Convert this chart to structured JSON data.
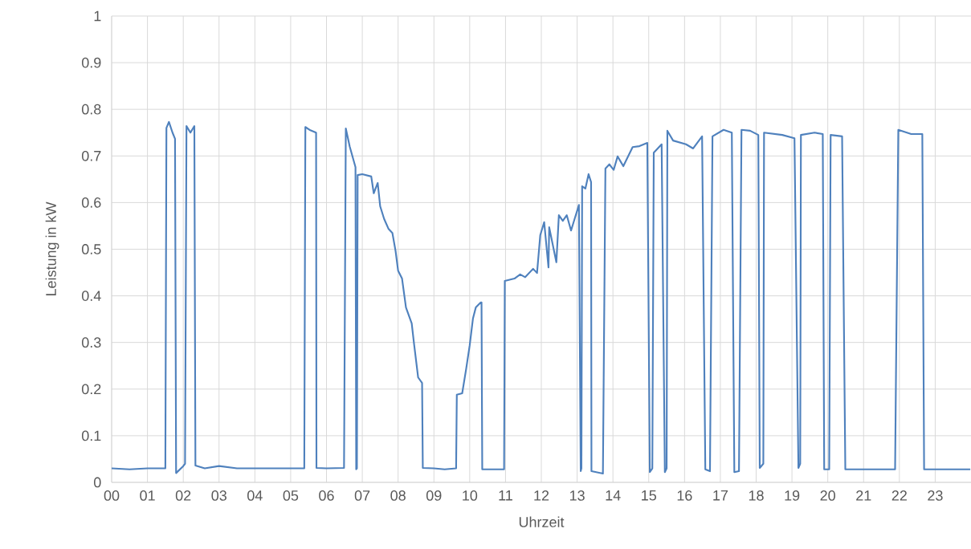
{
  "chart_data": {
    "type": "line",
    "xlabel": "Uhrzeit",
    "ylabel": "Leistung in kW",
    "color": "#4f81bd",
    "grid": true,
    "xlim": [
      0,
      24
    ],
    "ylim": [
      0,
      1
    ],
    "xticks": [
      {
        "value": 0,
        "label": "00"
      },
      {
        "value": 1,
        "label": "01"
      },
      {
        "value": 2,
        "label": "02"
      },
      {
        "value": 3,
        "label": "03"
      },
      {
        "value": 4,
        "label": "04"
      },
      {
        "value": 5,
        "label": "05"
      },
      {
        "value": 6,
        "label": "06"
      },
      {
        "value": 7,
        "label": "07"
      },
      {
        "value": 8,
        "label": "08"
      },
      {
        "value": 9,
        "label": "09"
      },
      {
        "value": 10,
        "label": "10"
      },
      {
        "value": 11,
        "label": "11"
      },
      {
        "value": 12,
        "label": "12"
      },
      {
        "value": 13,
        "label": "13"
      },
      {
        "value": 14,
        "label": "14"
      },
      {
        "value": 15,
        "label": "15"
      },
      {
        "value": 16,
        "label": "16"
      },
      {
        "value": 17,
        "label": "17"
      },
      {
        "value": 18,
        "label": "18"
      },
      {
        "value": 19,
        "label": "19"
      },
      {
        "value": 20,
        "label": "20"
      },
      {
        "value": 21,
        "label": "21"
      },
      {
        "value": 22,
        "label": "22"
      },
      {
        "value": 23,
        "label": "23"
      }
    ],
    "yticks": [
      0,
      0.1,
      0.2,
      0.3,
      0.4,
      0.5,
      0.6,
      0.7,
      0.8,
      0.9,
      1
    ],
    "x": [
      0,
      0.5,
      1,
      1.5,
      1.53,
      1.6,
      1.7,
      1.77,
      1.8,
      2.0,
      2.05,
      2.09,
      2.2,
      2.31,
      2.34,
      2.6,
      3.0,
      3.5,
      4.0,
      4.5,
      5.0,
      5.38,
      5.41,
      5.55,
      5.71,
      5.72,
      6.0,
      6.49,
      6.54,
      6.65,
      6.81,
      6.83,
      6.85,
      6.87,
      7.0,
      7.25,
      7.32,
      7.43,
      7.5,
      7.61,
      7.73,
      7.84,
      7.93,
      8.0,
      8.11,
      8.22,
      8.38,
      8.45,
      8.56,
      8.67,
      8.69,
      9.0,
      9.3,
      9.62,
      9.64,
      9.79,
      9.9,
      10.0,
      10.09,
      10.17,
      10.31,
      10.33,
      10.35,
      10.96,
      10.98,
      11.25,
      11.41,
      11.55,
      11.77,
      11.88,
      11.97,
      12.08,
      12.2,
      12.22,
      12.42,
      12.49,
      12.6,
      12.71,
      12.83,
      13.05,
      13.1,
      13.12,
      13.14,
      13.23,
      13.32,
      13.39,
      13.4,
      13.72,
      13.79,
      13.9,
      14.02,
      14.13,
      14.29,
      14.55,
      14.74,
      14.96,
      15.03,
      15.1,
      15.14,
      15.36,
      15.45,
      15.5,
      15.52,
      15.68,
      16.04,
      16.24,
      16.49,
      16.58,
      16.71,
      16.78,
      17.09,
      17.32,
      17.39,
      17.52,
      17.59,
      17.83,
      18.06,
      18.1,
      18.2,
      18.22,
      18.73,
      19.07,
      19.18,
      19.23,
      19.25,
      19.63,
      19.86,
      19.9,
      20.04,
      20.08,
      20.4,
      20.49,
      20.98,
      21.88,
      21.97,
      22.33,
      22.64,
      22.69,
      23.3,
      23.98
    ],
    "values": [
      0.03,
      0.028,
      0.03,
      0.03,
      0.76,
      0.773,
      0.75,
      0.737,
      0.02,
      0.035,
      0.04,
      0.764,
      0.75,
      0.764,
      0.036,
      0.03,
      0.035,
      0.03,
      0.03,
      0.03,
      0.03,
      0.03,
      0.762,
      0.755,
      0.75,
      0.031,
      0.03,
      0.031,
      0.759,
      0.72,
      0.676,
      0.028,
      0.03,
      0.659,
      0.661,
      0.656,
      0.62,
      0.642,
      0.592,
      0.565,
      0.544,
      0.535,
      0.496,
      0.454,
      0.437,
      0.375,
      0.341,
      0.294,
      0.225,
      0.213,
      0.031,
      0.03,
      0.028,
      0.03,
      0.188,
      0.191,
      0.243,
      0.294,
      0.351,
      0.375,
      0.386,
      0.386,
      0.028,
      0.028,
      0.432,
      0.437,
      0.446,
      0.44,
      0.458,
      0.449,
      0.53,
      0.558,
      0.461,
      0.547,
      0.472,
      0.573,
      0.561,
      0.573,
      0.54,
      0.595,
      0.024,
      0.03,
      0.635,
      0.63,
      0.661,
      0.644,
      0.024,
      0.019,
      0.673,
      0.682,
      0.67,
      0.699,
      0.678,
      0.719,
      0.721,
      0.728,
      0.022,
      0.03,
      0.707,
      0.725,
      0.022,
      0.03,
      0.754,
      0.733,
      0.725,
      0.716,
      0.742,
      0.028,
      0.024,
      0.742,
      0.756,
      0.75,
      0.022,
      0.024,
      0.756,
      0.754,
      0.745,
      0.031,
      0.04,
      0.75,
      0.745,
      0.738,
      0.031,
      0.04,
      0.745,
      0.75,
      0.747,
      0.028,
      0.028,
      0.745,
      0.742,
      0.028,
      0.028,
      0.028,
      0.756,
      0.747,
      0.747,
      0.028,
      0.028,
      0.028
    ]
  }
}
